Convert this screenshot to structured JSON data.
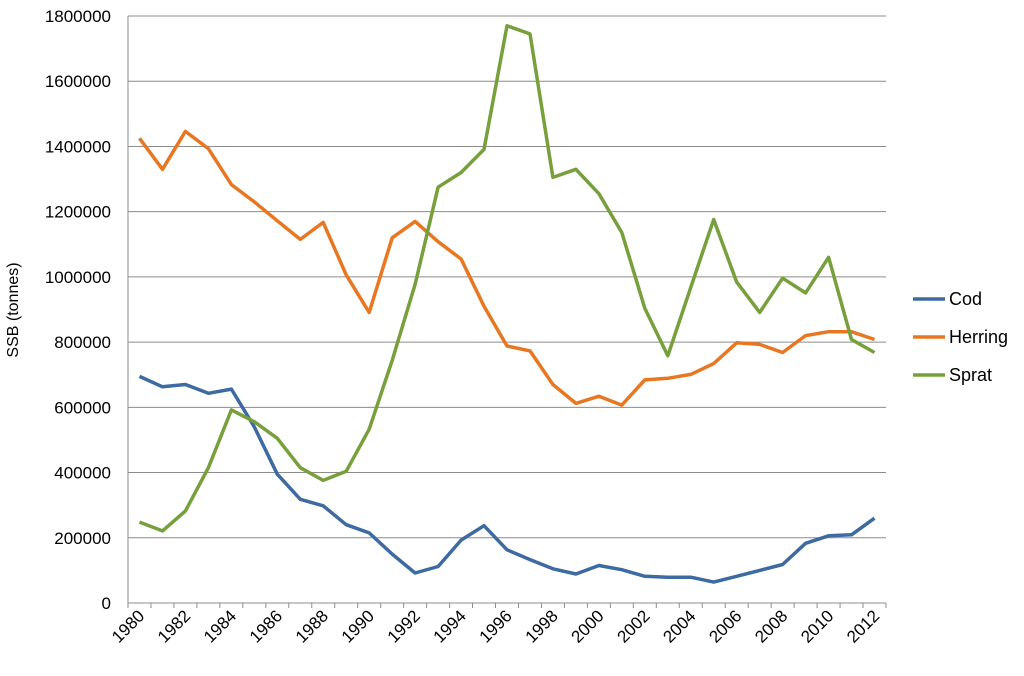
{
  "chart_data": {
    "type": "line",
    "title": "",
    "xlabel": "",
    "ylabel": "SSB (tonnes)",
    "ylim": [
      0,
      1800000
    ],
    "y_ticks": [
      "0",
      "200000",
      "400000",
      "600000",
      "800000",
      "1000000",
      "1200000",
      "1400000",
      "1600000",
      "1800000"
    ],
    "x_tick_labels": [
      "1980",
      "1982",
      "1984",
      "1986",
      "1988",
      "1990",
      "1992",
      "1994",
      "1996",
      "1998",
      "2000",
      "2002",
      "2004",
      "2006",
      "2008",
      "2010",
      "2012"
    ],
    "x": [
      1980,
      1981,
      1982,
      1983,
      1984,
      1985,
      1986,
      1987,
      1988,
      1989,
      1990,
      1991,
      1992,
      1993,
      1994,
      1995,
      1996,
      1997,
      1998,
      1999,
      2000,
      2001,
      2002,
      2003,
      2004,
      2005,
      2006,
      2007,
      2008,
      2009,
      2010,
      2011,
      2012
    ],
    "grid": "horizontal",
    "legend_position": "right",
    "series": [
      {
        "name": "Cod",
        "color": "#3d6aa0",
        "values": [
          695000,
          663000,
          670000,
          643000,
          656000,
          540000,
          395000,
          318000,
          298000,
          240000,
          215000,
          150000,
          92000,
          112000,
          193000,
          237000,
          163000,
          133000,
          105000,
          89000,
          115000,
          102000,
          82000,
          79000,
          79000,
          64000,
          82000,
          100000,
          118000,
          183000,
          206000,
          209000,
          260000
        ]
      },
      {
        "name": "Herring",
        "color": "#e87722",
        "values": [
          1425000,
          1330000,
          1446000,
          1393000,
          1283000,
          1230000,
          1172000,
          1115000,
          1167000,
          1006000,
          891000,
          1120000,
          1170000,
          1108000,
          1055000,
          910000,
          788000,
          773000,
          670000,
          612000,
          634000,
          607000,
          684000,
          689000,
          701000,
          734000,
          798000,
          793000,
          768000,
          820000,
          832000,
          832000,
          808000
        ]
      },
      {
        "name": "Sprat",
        "color": "#77a03c",
        "values": [
          248000,
          221000,
          282000,
          415000,
          592000,
          556000,
          505000,
          415000,
          376000,
          404000,
          533000,
          744000,
          977000,
          1275000,
          1320000,
          1391000,
          1770000,
          1745000,
          1305000,
          1330000,
          1255000,
          1136000,
          904000,
          758000,
          968000,
          1176000,
          984000,
          891000,
          996000,
          951000,
          1060000,
          808000,
          768000
        ]
      }
    ]
  }
}
